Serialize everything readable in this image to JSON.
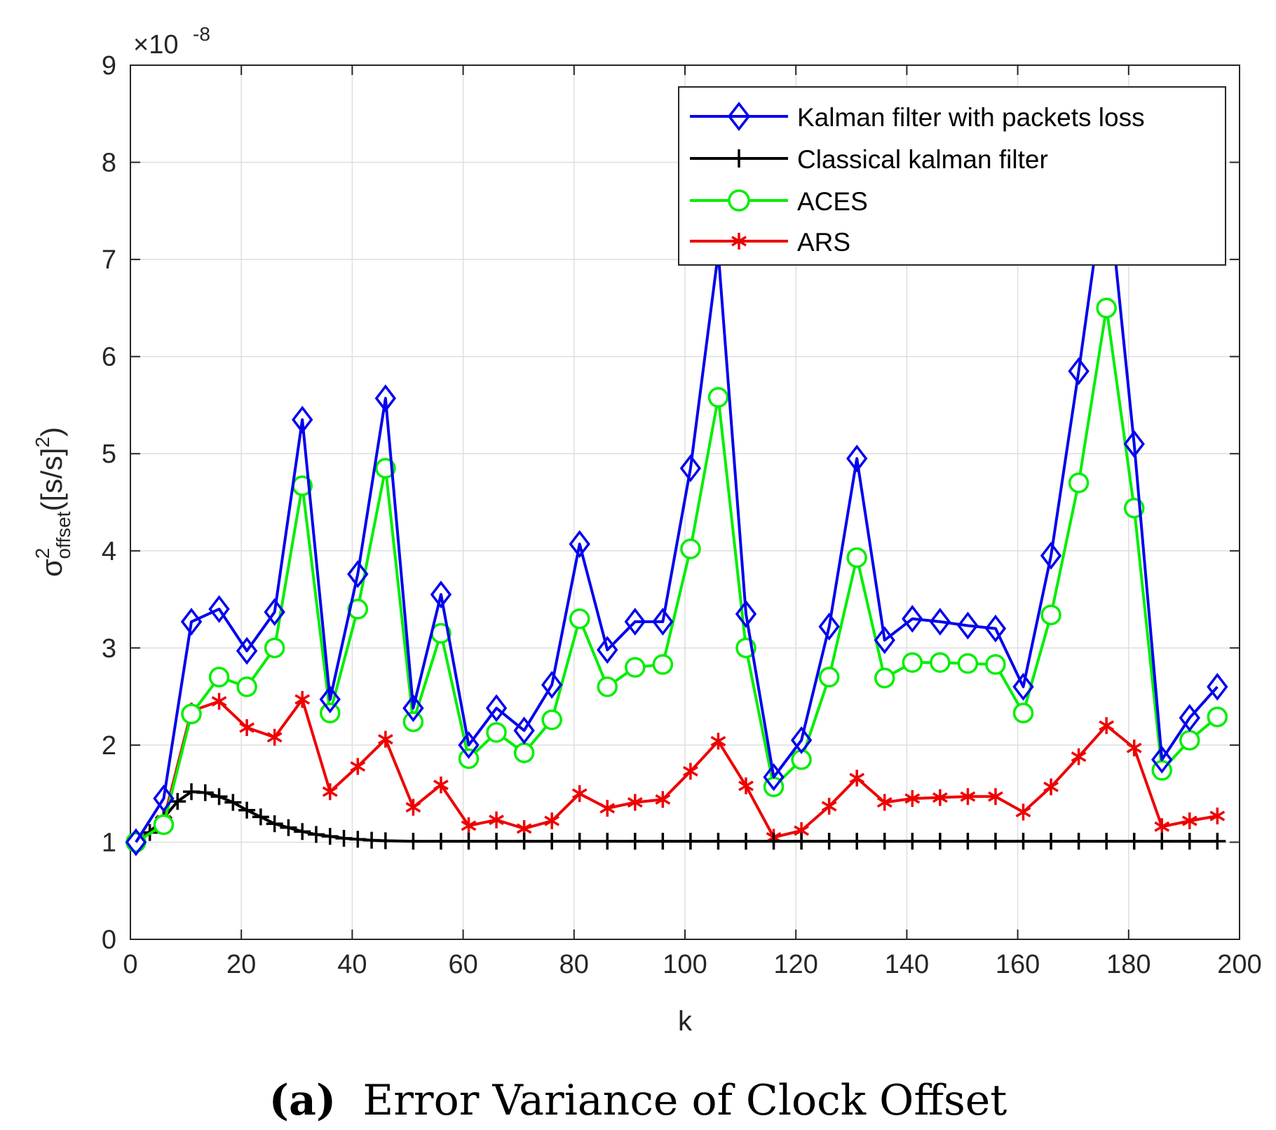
{
  "chart_data": {
    "type": "line",
    "xlabel": "k",
    "ylabel": {
      "base": "σ",
      "superscript": "2",
      "subscript": "offset",
      "unit": "([s/s]",
      "unit_sup": "2",
      "unit_close": ")"
    },
    "y_exponent": "×10",
    "y_exponent_power": "-8",
    "xlim": [
      0,
      200
    ],
    "ylim": [
      0,
      9
    ],
    "xticks": [
      0,
      20,
      40,
      60,
      80,
      100,
      120,
      140,
      160,
      180,
      200
    ],
    "yticks": [
      0,
      1,
      2,
      3,
      4,
      5,
      6,
      7,
      8,
      9
    ],
    "grid": true,
    "legend_position": "top-right",
    "x": [
      1,
      6,
      11,
      16,
      21,
      26,
      31,
      36,
      41,
      46,
      51,
      56,
      61,
      66,
      71,
      76,
      81,
      86,
      91,
      96,
      101,
      106,
      111,
      116,
      121,
      126,
      131,
      136,
      141,
      146,
      151,
      156,
      161,
      166,
      171,
      176,
      181,
      186,
      191,
      196
    ],
    "series": [
      {
        "name": "Kalman filter with packets loss",
        "color": "#0000ee",
        "marker": "diamond",
        "values": [
          1.0,
          1.45,
          3.27,
          3.4,
          2.97,
          3.37,
          5.35,
          2.47,
          3.76,
          5.57,
          2.38,
          3.55,
          2.0,
          2.38,
          2.15,
          2.62,
          4.07,
          2.98,
          3.27,
          3.27,
          4.85,
          7.07,
          3.35,
          1.67,
          2.05,
          3.22,
          4.95,
          3.08,
          3.3,
          3.27,
          3.23,
          3.2,
          2.6,
          3.95,
          5.85,
          7.9,
          5.1,
          1.85,
          2.28,
          2.6
        ]
      },
      {
        "name": "Classical kalman filter",
        "color": "#000000",
        "marker": "plus",
        "x": [
          1,
          3.5,
          6,
          8.5,
          11,
          13.5,
          16,
          18.5,
          21,
          23.5,
          26,
          28.5,
          31,
          33.5,
          36,
          38.5,
          41,
          43.5,
          46,
          51,
          56,
          61,
          66,
          71,
          76,
          81,
          86,
          91,
          96,
          101,
          106,
          111,
          116,
          121,
          126,
          131,
          136,
          141,
          146,
          151,
          156,
          161,
          166,
          171,
          176,
          181,
          186,
          191,
          196
        ],
        "values": [
          1.0,
          1.1,
          1.25,
          1.42,
          1.52,
          1.51,
          1.47,
          1.41,
          1.33,
          1.26,
          1.19,
          1.15,
          1.11,
          1.08,
          1.06,
          1.04,
          1.03,
          1.02,
          1.015,
          1.01,
          1.01,
          1.01,
          1.01,
          1.01,
          1.01,
          1.01,
          1.01,
          1.01,
          1.01,
          1.01,
          1.01,
          1.01,
          1.01,
          1.01,
          1.01,
          1.01,
          1.01,
          1.01,
          1.01,
          1.01,
          1.01,
          1.01,
          1.01,
          1.01,
          1.01,
          1.01,
          1.01,
          1.01,
          1.01
        ]
      },
      {
        "name": "ACES",
        "color": "#00ee00",
        "marker": "circle",
        "values": [
          1.0,
          1.18,
          2.32,
          2.7,
          2.6,
          3.0,
          4.67,
          2.33,
          3.4,
          4.85,
          2.24,
          3.15,
          1.86,
          2.13,
          1.92,
          2.26,
          3.3,
          2.6,
          2.8,
          2.83,
          4.02,
          5.58,
          3.0,
          1.57,
          1.85,
          2.7,
          3.93,
          2.69,
          2.85,
          2.85,
          2.84,
          2.83,
          2.33,
          3.34,
          4.7,
          6.5,
          4.44,
          1.74,
          2.05,
          2.29
        ]
      },
      {
        "name": "ARS",
        "color": "#ee0000",
        "marker": "asterisk",
        "values": [
          1.0,
          1.23,
          2.35,
          2.45,
          2.18,
          2.08,
          2.47,
          1.52,
          1.78,
          2.06,
          1.36,
          1.59,
          1.17,
          1.23,
          1.14,
          1.22,
          1.5,
          1.35,
          1.41,
          1.44,
          1.73,
          2.04,
          1.58,
          1.05,
          1.12,
          1.37,
          1.66,
          1.41,
          1.45,
          1.46,
          1.47,
          1.47,
          1.31,
          1.57,
          1.88,
          2.2,
          1.97,
          1.16,
          1.22,
          1.27
        ]
      }
    ]
  },
  "caption": {
    "tag": "(a)",
    "text": "Error Variance of Clock Offset"
  }
}
